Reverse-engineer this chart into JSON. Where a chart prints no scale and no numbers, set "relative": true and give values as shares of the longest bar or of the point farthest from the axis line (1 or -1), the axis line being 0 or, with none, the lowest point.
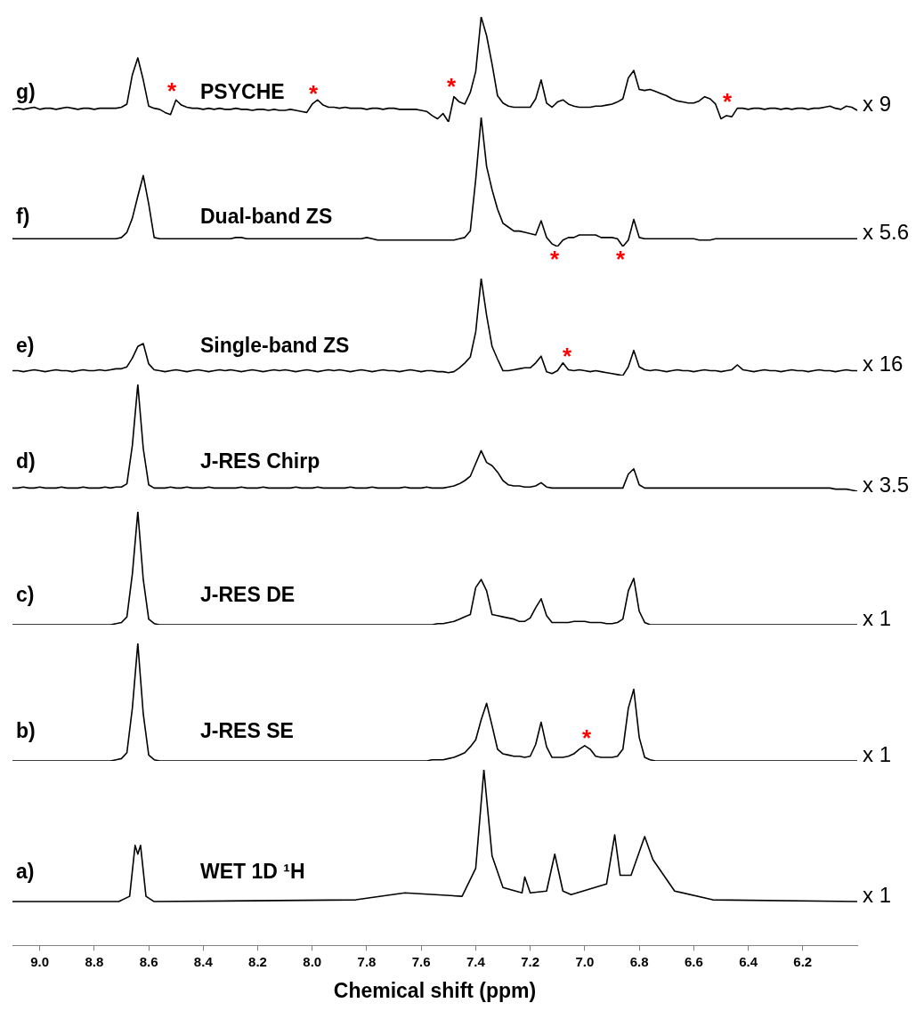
{
  "chart_data": [
    {
      "type": "line",
      "relative": true,
      "title": "PSYCHE",
      "color": "#000000",
      "marker": "none",
      "legend": false,
      "tick_labels": false,
      "categories": [
        null,
        null,
        null,
        null,
        null,
        null,
        null,
        null,
        null,
        null,
        null,
        null,
        null,
        null,
        null,
        null,
        null,
        null,
        null,
        null,
        null,
        null,
        null,
        null,
        null,
        null,
        null,
        null,
        null,
        null,
        null,
        null,
        null,
        null,
        null,
        null,
        null,
        null,
        null,
        null,
        null,
        null,
        null,
        null,
        null,
        null,
        null,
        null,
        null,
        null,
        null,
        null,
        null,
        null,
        null,
        null,
        null,
        null,
        null,
        null,
        null,
        null,
        null,
        null,
        null,
        null,
        null,
        null,
        null,
        null,
        null,
        null,
        null,
        null,
        null,
        null,
        null,
        null,
        null,
        null,
        null,
        null,
        null,
        null,
        null,
        null,
        null,
        null,
        null,
        null,
        null,
        null,
        null,
        null,
        null,
        null,
        null,
        null,
        null,
        null,
        null,
        null,
        null,
        null,
        null,
        null,
        null,
        null,
        null,
        null,
        null,
        null,
        null,
        null,
        null,
        null,
        null,
        null,
        null,
        null,
        null,
        null,
        null,
        null,
        null,
        null,
        null,
        null,
        null,
        null,
        null,
        null,
        null,
        null,
        null,
        null,
        null,
        null,
        null,
        null,
        null,
        null,
        null,
        null,
        null,
        null,
        null,
        null,
        null,
        null,
        null,
        null,
        null,
        null,
        null,
        null
      ],
      "values": [
        0.12,
        0.13,
        0.12,
        0.13,
        0.14,
        0.12,
        0.13,
        0.13,
        0.12,
        0.13,
        0.14,
        0.13,
        0.12,
        0.13,
        0.13,
        0.12,
        0.13,
        0.13,
        0.13,
        0.13,
        0.14,
        0.17,
        0.45,
        0.61,
        0.4,
        0.15,
        0.13,
        0.12,
        0.09,
        0.07,
        0.21,
        0.16,
        0.14,
        0.13,
        0.13,
        0.12,
        0.13,
        0.12,
        0.13,
        0.12,
        0.12,
        0.13,
        0.12,
        0.12,
        0.11,
        0.12,
        0.12,
        0.11,
        0.12,
        0.11,
        0.11,
        0.12,
        0.11,
        0.1,
        0.09,
        0.17,
        0.21,
        0.16,
        0.14,
        0.14,
        0.13,
        0.14,
        0.13,
        0.13,
        0.13,
        0.12,
        0.13,
        0.13,
        0.12,
        0.13,
        0.13,
        0.12,
        0.12,
        0.12,
        0.12,
        0.11,
        0.1,
        0.06,
        0.03,
        0.08,
        0,
        0.24,
        0.19,
        0.17,
        0.28,
        0.48,
        1,
        0.82,
        0.55,
        0.25,
        0.18,
        0.15,
        0.14,
        0.14,
        0.14,
        0.14,
        0.22,
        0.4,
        0.18,
        0.14,
        0.19,
        0.21,
        0.17,
        0.15,
        0.14,
        0.14,
        0.14,
        0.15,
        0.15,
        0.16,
        0.17,
        0.19,
        0.22,
        0.42,
        0.49,
        0.31,
        0.3,
        0.31,
        0.29,
        0.27,
        0.25,
        0.22,
        0.2,
        0.19,
        0.18,
        0.18,
        0.2,
        0.24,
        0.22,
        0.17,
        0.03,
        0.06,
        0.05,
        0.13,
        0.13,
        0.12,
        0.13,
        0.13,
        0.12,
        0.13,
        0.13,
        0.12,
        0.13,
        0.12,
        0.13,
        0.13,
        0.12,
        0.13,
        0.13,
        0.14,
        0.15,
        0.13,
        0.12,
        0.15,
        0.14,
        0.11
      ],
      "annotations": [
        "g)",
        "x 9",
        "*",
        "*",
        "*",
        "*"
      ]
    },
    {
      "type": "line",
      "relative": true,
      "title": "Dual-band ZS",
      "color": "#000000",
      "marker": "none",
      "legend": false,
      "tick_labels": false,
      "categories": [
        null,
        null,
        null,
        null,
        null,
        null,
        null,
        null,
        null,
        null,
        null,
        null,
        null,
        null,
        null,
        null,
        null,
        null,
        null,
        null,
        null,
        null,
        null,
        null,
        null,
        null,
        null,
        null,
        null,
        null,
        null,
        null,
        null,
        null,
        null,
        null,
        null,
        null,
        null,
        null,
        null,
        null,
        null,
        null,
        null,
        null,
        null,
        null,
        null,
        null,
        null,
        null,
        null,
        null,
        null,
        null,
        null,
        null,
        null,
        null,
        null,
        null,
        null,
        null,
        null,
        null,
        null,
        null,
        null,
        null,
        null,
        null,
        null,
        null,
        null,
        null,
        null,
        null,
        null,
        null,
        null,
        null,
        null,
        null,
        null,
        null,
        null,
        null,
        null,
        null,
        null,
        null,
        null,
        null,
        null,
        null,
        null,
        null,
        null,
        null,
        null,
        null,
        null,
        null,
        null,
        null,
        null,
        null,
        null,
        null,
        null,
        null,
        null,
        null,
        null,
        null,
        null,
        null,
        null,
        null,
        null,
        null,
        null,
        null,
        null,
        null,
        null,
        null,
        null,
        null,
        null,
        null,
        null,
        null,
        null,
        null,
        null,
        null,
        null,
        null,
        null,
        null,
        null,
        null,
        null,
        null,
        null,
        null,
        null,
        null,
        null,
        null,
        null,
        null,
        null,
        null
      ],
      "values": [
        0.06,
        0.06,
        0.06,
        0.06,
        0.06,
        0.06,
        0.06,
        0.06,
        0.06,
        0.06,
        0.06,
        0.06,
        0.06,
        0.06,
        0.06,
        0.06,
        0.06,
        0.06,
        0.06,
        0.06,
        0.07,
        0.11,
        0.22,
        0.39,
        0.55,
        0.33,
        0.07,
        0.06,
        0.06,
        0.06,
        0.06,
        0.06,
        0.06,
        0.06,
        0.06,
        0.06,
        0.06,
        0.06,
        0.06,
        0.06,
        0.06,
        0.07,
        0.07,
        0.06,
        0.06,
        0.06,
        0.06,
        0.06,
        0.06,
        0.06,
        0.06,
        0.06,
        0.06,
        0.06,
        0.06,
        0.06,
        0.06,
        0.06,
        0.06,
        0.06,
        0.06,
        0.06,
        0.06,
        0.06,
        0.06,
        0.07,
        0.06,
        0.05,
        0.05,
        0.05,
        0.05,
        0.05,
        0.05,
        0.05,
        0.05,
        0.05,
        0.05,
        0.05,
        0.05,
        0.05,
        0.05,
        0.05,
        0.06,
        0.07,
        0.12,
        0.52,
        1,
        0.62,
        0.44,
        0.29,
        0.18,
        0.15,
        0.12,
        0.12,
        0.11,
        0.1,
        0.09,
        0.2,
        0.07,
        0.02,
        0,
        0.05,
        0.07,
        0.07,
        0.09,
        0.09,
        0.09,
        0.09,
        0.07,
        0.07,
        0.07,
        0.06,
        0,
        0.05,
        0.21,
        0.07,
        0.06,
        0.06,
        0.06,
        0.06,
        0.06,
        0.06,
        0.06,
        0.06,
        0.06,
        0.06,
        0.05,
        0.05,
        0.05,
        0.06,
        0.06,
        0.06,
        0.06,
        0.06,
        0.06,
        0.06,
        0.06,
        0.06,
        0.06,
        0.06,
        0.06,
        0.06,
        0.06,
        0.06,
        0.06,
        0.06,
        0.06,
        0.06,
        0.06,
        0.06,
        0.06,
        0.06,
        0.06,
        0.06,
        0.06,
        0.06
      ],
      "annotations": [
        "f)",
        "x 5.6",
        "*",
        "*"
      ]
    },
    {
      "type": "line",
      "relative": true,
      "title": "Single-band ZS",
      "color": "#000000",
      "marker": "none",
      "legend": false,
      "tick_labels": false,
      "categories": [
        null,
        null,
        null,
        null,
        null,
        null,
        null,
        null,
        null,
        null,
        null,
        null,
        null,
        null,
        null,
        null,
        null,
        null,
        null,
        null,
        null,
        null,
        null,
        null,
        null,
        null,
        null,
        null,
        null,
        null,
        null,
        null,
        null,
        null,
        null,
        null,
        null,
        null,
        null,
        null,
        null,
        null,
        null,
        null,
        null,
        null,
        null,
        null,
        null,
        null,
        null,
        null,
        null,
        null,
        null,
        null,
        null,
        null,
        null,
        null,
        null,
        null,
        null,
        null,
        null,
        null,
        null,
        null,
        null,
        null,
        null,
        null,
        null,
        null,
        null,
        null,
        null,
        null,
        null,
        null,
        null,
        null,
        null,
        null,
        null,
        null,
        null,
        null,
        null,
        null,
        null,
        null,
        null,
        null,
        null,
        null,
        null,
        null,
        null,
        null,
        null,
        null,
        null,
        null,
        null,
        null,
        null,
        null,
        null,
        null,
        null,
        null,
        null,
        null,
        null,
        null,
        null,
        null,
        null,
        null,
        null,
        null,
        null,
        null,
        null,
        null,
        null,
        null,
        null,
        null,
        null,
        null,
        null,
        null,
        null,
        null,
        null,
        null,
        null,
        null,
        null,
        null,
        null,
        null,
        null,
        null,
        null,
        null,
        null,
        null,
        null,
        null,
        null,
        null,
        null,
        null
      ],
      "values": [
        0.05,
        0.05,
        0.04,
        0.05,
        0.06,
        0.05,
        0.04,
        0.05,
        0.06,
        0.05,
        0.05,
        0.04,
        0.05,
        0.06,
        0.05,
        0.05,
        0.06,
        0.05,
        0.06,
        0.07,
        0.07,
        0.09,
        0.18,
        0.3,
        0.33,
        0.12,
        0.06,
        0.05,
        0.04,
        0.05,
        0.06,
        0.05,
        0.04,
        0.05,
        0.06,
        0.05,
        0.04,
        0.05,
        0.06,
        0.05,
        0.06,
        0.05,
        0.04,
        0.05,
        0.06,
        0.05,
        0.04,
        0.05,
        0.06,
        0.05,
        0.06,
        0.05,
        0.04,
        0.05,
        0.06,
        0.05,
        0.04,
        0.05,
        0.06,
        0.05,
        0.06,
        0.05,
        0.04,
        0.05,
        0.06,
        0.05,
        0.04,
        0.05,
        0.06,
        0.05,
        0.05,
        0.04,
        0.05,
        0.06,
        0.05,
        0.04,
        0.05,
        0.05,
        0.04,
        0.04,
        0.03,
        0.04,
        0.08,
        0.13,
        0.19,
        0.45,
        1,
        0.62,
        0.3,
        0.17,
        0.05,
        0.05,
        0.06,
        0.07,
        0.08,
        0.08,
        0.13,
        0.2,
        0.04,
        0.02,
        0.05,
        0.13,
        0.06,
        0.05,
        0.06,
        0.05,
        0.04,
        0.05,
        0.04,
        0.03,
        0.02,
        0.01,
        0,
        0.09,
        0.26,
        0.09,
        0.06,
        0.05,
        0.06,
        0.05,
        0.04,
        0.05,
        0.06,
        0.05,
        0.05,
        0.04,
        0.05,
        0.06,
        0.05,
        0.05,
        0.04,
        0.05,
        0.06,
        0.11,
        0.06,
        0.05,
        0.04,
        0.05,
        0.06,
        0.05,
        0.05,
        0.04,
        0.05,
        0.06,
        0.05,
        0.05,
        0.04,
        0.05,
        0.06,
        0.05,
        0.05,
        0.04,
        0.05,
        0.06,
        0.05,
        0.05
      ],
      "annotations": [
        "e)",
        "x 16",
        "*"
      ]
    },
    {
      "type": "line",
      "relative": true,
      "title": "J-RES Chirp",
      "color": "#000000",
      "marker": "none",
      "legend": false,
      "tick_labels": false,
      "categories": [
        null,
        null,
        null,
        null,
        null,
        null,
        null,
        null,
        null,
        null,
        null,
        null,
        null,
        null,
        null,
        null,
        null,
        null,
        null,
        null,
        null,
        null,
        null,
        null,
        null,
        null,
        null,
        null,
        null,
        null,
        null,
        null,
        null,
        null,
        null,
        null,
        null,
        null,
        null,
        null,
        null,
        null,
        null,
        null,
        null,
        null,
        null,
        null,
        null,
        null,
        null,
        null,
        null,
        null,
        null,
        null,
        null,
        null,
        null,
        null,
        null,
        null,
        null,
        null,
        null,
        null,
        null,
        null,
        null,
        null,
        null,
        null,
        null,
        null,
        null,
        null,
        null,
        null,
        null,
        null,
        null,
        null,
        null,
        null,
        null,
        null,
        null,
        null,
        null,
        null,
        null,
        null,
        null,
        null,
        null,
        null,
        null,
        null,
        null,
        null,
        null,
        null,
        null,
        null,
        null,
        null,
        null,
        null,
        null,
        null,
        null,
        null,
        null,
        null,
        null,
        null,
        null,
        null,
        null,
        null,
        null,
        null,
        null,
        null,
        null,
        null,
        null,
        null,
        null,
        null,
        null,
        null,
        null,
        null,
        null,
        null,
        null,
        null,
        null,
        null,
        null,
        null,
        null,
        null,
        null,
        null,
        null,
        null,
        null,
        null,
        null,
        null,
        null,
        null,
        null,
        null
      ],
      "values": [
        0.03,
        0.03,
        0.04,
        0.03,
        0.03,
        0.04,
        0.03,
        0.03,
        0.03,
        0.04,
        0.03,
        0.03,
        0.03,
        0.04,
        0.03,
        0.03,
        0.03,
        0.04,
        0.03,
        0.04,
        0.04,
        0.07,
        0.43,
        1,
        0.4,
        0.06,
        0.03,
        0.03,
        0.03,
        0.04,
        0.03,
        0.03,
        0.04,
        0.03,
        0.03,
        0.03,
        0.04,
        0.03,
        0.03,
        0.03,
        0.03,
        0.03,
        0.04,
        0.03,
        0.03,
        0.03,
        0.04,
        0.03,
        0.03,
        0.03,
        0.03,
        0.03,
        0.04,
        0.03,
        0.03,
        0.03,
        0.04,
        0.03,
        0.03,
        0.03,
        0.03,
        0.03,
        0.04,
        0.03,
        0.03,
        0.03,
        0.04,
        0.03,
        0.03,
        0.03,
        0.03,
        0.03,
        0.04,
        0.03,
        0.03,
        0.03,
        0.04,
        0.03,
        0.03,
        0.03,
        0.04,
        0.05,
        0.07,
        0.1,
        0.14,
        0.26,
        0.38,
        0.27,
        0.24,
        0.18,
        0.1,
        0.06,
        0.05,
        0.05,
        0.04,
        0.04,
        0.05,
        0.08,
        0.04,
        0.03,
        0.03,
        0.03,
        0.03,
        0.03,
        0.03,
        0.03,
        0.03,
        0.03,
        0.03,
        0.03,
        0.03,
        0.03,
        0.03,
        0.16,
        0.21,
        0.06,
        0.03,
        0.03,
        0.03,
        0.03,
        0.03,
        0.03,
        0.03,
        0.03,
        0.03,
        0.03,
        0.03,
        0.03,
        0.03,
        0.03,
        0.03,
        0.03,
        0.03,
        0.03,
        0.03,
        0.03,
        0.03,
        0.03,
        0.03,
        0.03,
        0.03,
        0.03,
        0.03,
        0.03,
        0.03,
        0.03,
        0.03,
        0.03,
        0.03,
        0.03,
        0.03,
        0.02,
        0.02,
        0.02,
        0.01,
        0
      ],
      "annotations": [
        "d)",
        "x 3.5"
      ]
    },
    {
      "type": "line",
      "relative": true,
      "title": "J-RES DE",
      "color": "#000000",
      "marker": "none",
      "legend": false,
      "tick_labels": false,
      "categories": [
        null,
        null,
        null,
        null,
        null,
        null,
        null,
        null,
        null,
        null,
        null,
        null,
        null,
        null,
        null,
        null,
        null,
        null,
        null,
        null,
        null,
        null,
        null,
        null,
        null,
        null,
        null,
        null,
        null,
        null,
        null,
        null,
        null,
        null,
        null,
        null,
        null,
        null,
        null,
        null,
        null,
        null,
        null,
        null,
        null,
        null,
        null,
        null,
        null,
        null,
        null,
        null,
        null,
        null,
        null,
        null,
        null,
        null,
        null,
        null,
        null,
        null,
        null,
        null,
        null,
        null,
        null,
        null,
        null,
        null,
        null,
        null,
        null,
        null,
        null,
        null,
        null,
        null,
        null,
        null,
        null,
        null,
        null,
        null,
        null,
        null,
        null,
        null,
        null,
        null,
        null,
        null,
        null,
        null,
        null,
        null,
        null,
        null,
        null,
        null,
        null,
        null,
        null,
        null,
        null,
        null,
        null,
        null,
        null,
        null,
        null,
        null,
        null,
        null,
        null,
        null,
        null,
        null,
        null,
        null,
        null,
        null,
        null,
        null,
        null,
        null,
        null,
        null,
        null,
        null,
        null,
        null,
        null,
        null,
        null,
        null,
        null,
        null,
        null,
        null,
        null,
        null,
        null,
        null,
        null,
        null,
        null,
        null,
        null,
        null,
        null,
        null,
        null,
        null,
        null,
        null
      ],
      "values": [
        0,
        0,
        0,
        0,
        0,
        0,
        0,
        0,
        0,
        0,
        0,
        0,
        0,
        0,
        0,
        0,
        0,
        0,
        0,
        0.01,
        0.02,
        0.07,
        0.45,
        1,
        0.4,
        0.05,
        0.01,
        0,
        0,
        0,
        0,
        0,
        0,
        0,
        0,
        0,
        0,
        0,
        0,
        0,
        0,
        0,
        0,
        0,
        0,
        0,
        0,
        0,
        0,
        0,
        0,
        0,
        0,
        0,
        0,
        0,
        0,
        0,
        0,
        0,
        0,
        0,
        0,
        0,
        0,
        0,
        0,
        0,
        0,
        0,
        0,
        0,
        0,
        0,
        0,
        0,
        0,
        0,
        0.01,
        0.01,
        0.02,
        0.03,
        0.05,
        0.07,
        0.09,
        0.33,
        0.4,
        0.3,
        0.09,
        0.08,
        0.07,
        0.06,
        0.05,
        0.03,
        0.03,
        0.06,
        0.15,
        0.23,
        0.08,
        0.02,
        0.02,
        0.02,
        0.02,
        0.03,
        0.03,
        0.03,
        0.02,
        0.02,
        0.02,
        0.01,
        0.01,
        0.02,
        0.05,
        0.3,
        0.41,
        0.12,
        0.02,
        0,
        0,
        0,
        0,
        0,
        0,
        0,
        0,
        0,
        0,
        0,
        0,
        0,
        0,
        0,
        0,
        0,
        0,
        0,
        0,
        0,
        0,
        0,
        0,
        0,
        0,
        0,
        0,
        0,
        0,
        0,
        0,
        0,
        0,
        0,
        0,
        0,
        0,
        0
      ],
      "annotations": [
        "c)",
        "x 1"
      ]
    },
    {
      "type": "line",
      "relative": true,
      "title": "J-RES SE",
      "color": "#000000",
      "marker": "none",
      "legend": false,
      "tick_labels": false,
      "categories": [
        null,
        null,
        null,
        null,
        null,
        null,
        null,
        null,
        null,
        null,
        null,
        null,
        null,
        null,
        null,
        null,
        null,
        null,
        null,
        null,
        null,
        null,
        null,
        null,
        null,
        null,
        null,
        null,
        null,
        null,
        null,
        null,
        null,
        null,
        null,
        null,
        null,
        null,
        null,
        null,
        null,
        null,
        null,
        null,
        null,
        null,
        null,
        null,
        null,
        null,
        null,
        null,
        null,
        null,
        null,
        null,
        null,
        null,
        null,
        null,
        null,
        null,
        null,
        null,
        null,
        null,
        null,
        null,
        null,
        null,
        null,
        null,
        null,
        null,
        null,
        null,
        null,
        null,
        null,
        null,
        null,
        null,
        null,
        null,
        null,
        null,
        null,
        null,
        null,
        null,
        null,
        null,
        null,
        null,
        null,
        null,
        null,
        null,
        null,
        null,
        null,
        null,
        null,
        null,
        null,
        null,
        null,
        null,
        null,
        null,
        null,
        null,
        null,
        null,
        null,
        null,
        null,
        null,
        null,
        null,
        null,
        null,
        null,
        null,
        null,
        null,
        null,
        null,
        null,
        null,
        null,
        null,
        null,
        null,
        null,
        null,
        null,
        null,
        null,
        null,
        null,
        null,
        null,
        null,
        null,
        null,
        null,
        null,
        null,
        null,
        null,
        null,
        null,
        null,
        null,
        null
      ],
      "values": [
        0,
        0,
        0,
        0,
        0,
        0,
        0,
        0,
        0,
        0,
        0,
        0,
        0,
        0,
        0,
        0,
        0,
        0,
        0,
        0.01,
        0.02,
        0.07,
        0.45,
        1,
        0.4,
        0.05,
        0.01,
        0,
        0,
        0,
        0,
        0,
        0,
        0,
        0,
        0,
        0,
        0,
        0,
        0,
        0,
        0,
        0,
        0,
        0,
        0,
        0,
        0,
        0,
        0,
        0,
        0,
        0,
        0,
        0,
        0,
        0,
        0,
        0,
        0,
        0,
        0,
        0,
        0,
        0,
        0,
        0,
        0,
        0,
        0,
        0,
        0,
        0,
        0,
        0,
        0,
        0,
        0.01,
        0.01,
        0.01,
        0.02,
        0.03,
        0.05,
        0.07,
        0.12,
        0.18,
        0.35,
        0.49,
        0.3,
        0.1,
        0.06,
        0.05,
        0.04,
        0.04,
        0.03,
        0.04,
        0.14,
        0.33,
        0.12,
        0.03,
        0.03,
        0.03,
        0.04,
        0.06,
        0.1,
        0.13,
        0.1,
        0.04,
        0.03,
        0.03,
        0.03,
        0.04,
        0.1,
        0.45,
        0.61,
        0.2,
        0.03,
        0.01,
        0,
        0,
        0,
        0,
        0,
        0,
        0,
        0,
        0,
        0,
        0,
        0,
        0,
        0,
        0,
        0,
        0,
        0,
        0,
        0,
        0,
        0,
        0,
        0,
        0,
        0,
        0,
        0,
        0,
        0,
        0,
        0,
        0,
        0,
        0,
        0,
        0,
        0
      ],
      "annotations": [
        "b)",
        "x 1",
        "*"
      ]
    },
    {
      "type": "line",
      "relative": true,
      "title": "WET 1D ¹H",
      "xlabel": "Chemical shift (ppm)",
      "color": "#000000",
      "marker": "none",
      "legend": false,
      "tick_labels": "x",
      "xlim": [
        9.1,
        6.0
      ],
      "xticks": [
        {
          "value": 9.0,
          "label": "9.0"
        },
        {
          "value": 8.8,
          "label": "8.8"
        },
        {
          "value": 8.6,
          "label": "8.6"
        },
        {
          "value": 8.4,
          "label": "8.4"
        },
        {
          "value": 8.2,
          "label": "8.2"
        },
        {
          "value": 8.0,
          "label": "8.0"
        },
        {
          "value": 7.8,
          "label": "7.8"
        },
        {
          "value": 7.6,
          "label": "7.6"
        },
        {
          "value": 7.4,
          "label": "7.4"
        },
        {
          "value": 7.2,
          "label": "7.2"
        },
        {
          "value": 7.0,
          "label": "7.0"
        },
        {
          "value": 6.8,
          "label": "6.8"
        },
        {
          "value": 6.6,
          "label": "6.6"
        },
        {
          "value": 6.4,
          "label": "6.4"
        },
        {
          "value": 6.2,
          "label": "6.2"
        }
      ],
      "x": [
        9.1,
        8.71,
        8.67,
        8.65,
        8.64,
        8.63,
        8.61,
        8.58,
        7.84,
        7.66,
        7.45,
        7.4,
        7.37,
        7.34,
        7.3,
        7.23,
        7.22,
        7.2,
        7.14,
        7.11,
        7.08,
        7.05,
        6.92,
        6.89,
        6.87,
        6.83,
        6.78,
        6.75,
        6.67,
        6.53,
        6.0
      ],
      "values": [
        0.25,
        0.25,
        0.28,
        0.57,
        0.52,
        0.57,
        0.28,
        0.25,
        0.26,
        0.3,
        0.28,
        0.44,
        1,
        0.51,
        0.33,
        0.3,
        0.39,
        0.3,
        0.31,
        0.52,
        0.31,
        0.29,
        0.35,
        0.63,
        0.4,
        0.4,
        0.62,
        0.49,
        0.31,
        0.26,
        0.25
      ],
      "annotations": [
        "a)",
        "x 1"
      ]
    }
  ]
}
